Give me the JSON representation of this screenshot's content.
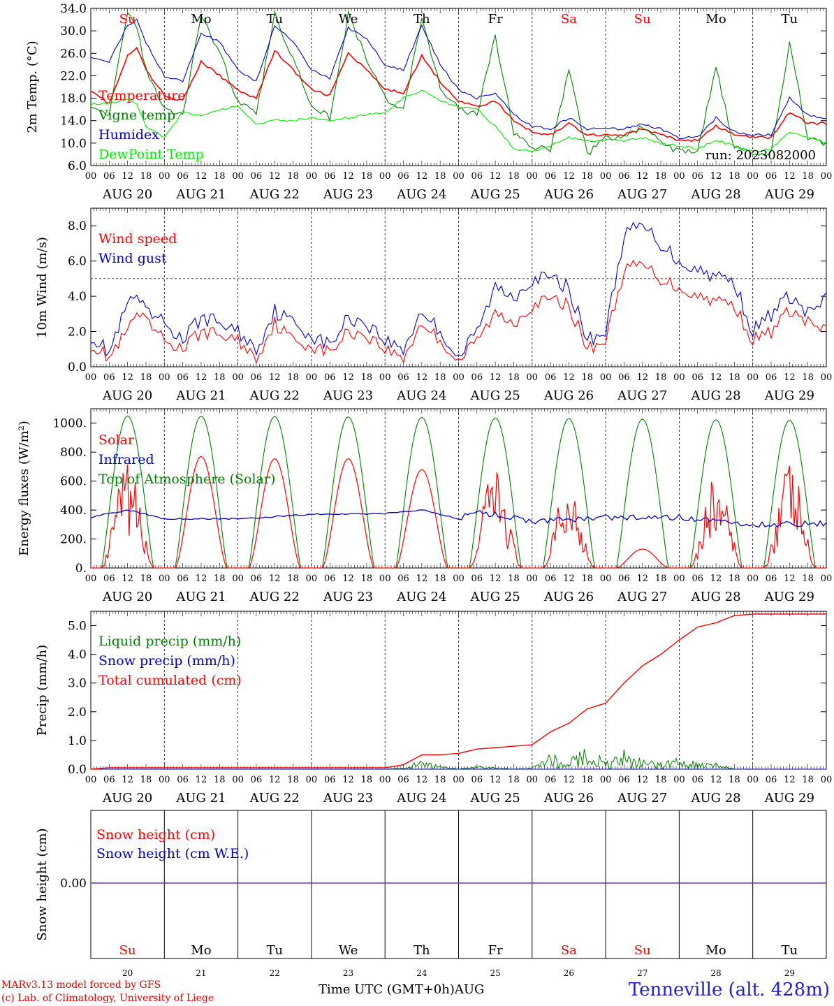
{
  "footer": {
    "credit1": "MARv3.13 model forced by GFS",
    "credit2": "(c) Lab. of Climatology, University of Liege",
    "time_label": "Time UTC (GMT+0h)",
    "month_label": "AUG",
    "station": "Tenneville (alt. 428m)"
  },
  "common": {
    "days": [
      {
        "dow": "Su",
        "date": "AUG 20",
        "num": "20",
        "weekend": true
      },
      {
        "dow": "Mo",
        "date": "AUG 21",
        "num": "21",
        "weekend": false
      },
      {
        "dow": "Tu",
        "date": "AUG 22",
        "num": "22",
        "weekend": false
      },
      {
        "dow": "We",
        "date": "AUG 23",
        "num": "23",
        "weekend": false
      },
      {
        "dow": "Th",
        "date": "AUG 24",
        "num": "24",
        "weekend": false
      },
      {
        "dow": "Fr",
        "date": "AUG 25",
        "num": "25",
        "weekend": false
      },
      {
        "dow": "Sa",
        "date": "AUG 26",
        "num": "26",
        "weekend": true
      },
      {
        "dow": "Su",
        "date": "AUG 27",
        "num": "27",
        "weekend": true
      },
      {
        "dow": "Mo",
        "date": "AUG 28",
        "num": "28",
        "weekend": false
      },
      {
        "dow": "Tu",
        "date": "AUG 29",
        "num": "29",
        "weekend": false
      }
    ],
    "hour_ticks": [
      "00",
      "06",
      "12",
      "18"
    ],
    "last_tick": "00",
    "weekend_color": "#ff0000",
    "weekday_color": "#000000"
  },
  "chart_data": [
    {
      "type": "line",
      "ylabel": "2m Temp. (°C)",
      "ylim": [
        6.0,
        34.0
      ],
      "yticks": [
        "6.0",
        "10.0",
        "14.0",
        "18.0",
        "22.0",
        "26.0",
        "30.0",
        "34.0"
      ],
      "annotation": "run: 2023082000",
      "x_hours": [
        0,
        6,
        12,
        15,
        18,
        24,
        30,
        36,
        42,
        48,
        54,
        60,
        66,
        72,
        78,
        84,
        90,
        96,
        102,
        108,
        114,
        120,
        126,
        132,
        138,
        144,
        150,
        156,
        162,
        168,
        174,
        180,
        186,
        192,
        198,
        204,
        210,
        216,
        222,
        228,
        234,
        240
      ],
      "series": [
        {
          "name": "Temperature",
          "color": "#ff0000",
          "values": [
            19.5,
            17.0,
            25.5,
            27.0,
            23.0,
            18.5,
            17.5,
            24.5,
            22.0,
            19.5,
            18.0,
            26.5,
            23.0,
            19.5,
            18.5,
            26.0,
            23.0,
            19.5,
            19.0,
            25.5,
            21.0,
            17.5,
            16.5,
            17.5,
            14.0,
            12.0,
            11.5,
            13.5,
            11.5,
            11.5,
            11.5,
            12.5,
            11.5,
            10.5,
            10.5,
            13.0,
            11.5,
            11.0,
            11.0,
            15.5,
            13.5,
            13.5
          ]
        },
        {
          "name": "Vigne temp",
          "color": "#008000",
          "values": [
            17.0,
            15.0,
            33.0,
            31.0,
            23.0,
            16.0,
            15.0,
            33.0,
            26.0,
            17.5,
            15.0,
            33.0,
            25.0,
            17.0,
            14.5,
            33.0,
            25.0,
            18.0,
            16.0,
            32.0,
            20.0,
            16.0,
            15.0,
            29.0,
            12.0,
            9.0,
            9.0,
            23.0,
            8.0,
            11.0,
            11.0,
            13.0,
            10.0,
            8.5,
            8.5,
            23.5,
            9.0,
            8.0,
            8.0,
            28.0,
            11.0,
            10.0
          ]
        },
        {
          "name": "Humidex",
          "color": "#0000c8",
          "values": [
            25.5,
            24.5,
            31.0,
            32.0,
            28.0,
            22.0,
            21.0,
            29.5,
            28.0,
            23.0,
            21.0,
            31.0,
            28.0,
            23.0,
            21.5,
            30.5,
            28.5,
            24.0,
            23.0,
            31.0,
            24.0,
            19.5,
            18.0,
            19.0,
            15.0,
            13.0,
            12.5,
            14.5,
            12.5,
            12.5,
            12.5,
            13.5,
            12.5,
            11.0,
            11.0,
            14.5,
            12.0,
            11.5,
            11.5,
            18.0,
            15.0,
            14.5
          ]
        },
        {
          "name": "DewPoint Temp",
          "color": "#00ee00",
          "values": [
            17.0,
            17.0,
            18.0,
            17.0,
            13.0,
            11.0,
            15.5,
            15.0,
            16.0,
            16.5,
            13.5,
            14.0,
            14.0,
            14.5,
            14.0,
            14.5,
            15.0,
            15.5,
            18.0,
            19.5,
            17.5,
            16.5,
            16.0,
            13.0,
            9.0,
            8.5,
            9.5,
            11.0,
            10.5,
            10.5,
            10.5,
            11.0,
            10.0,
            9.5,
            9.0,
            10.5,
            9.5,
            8.5,
            9.0,
            12.0,
            11.0,
            10.0
          ]
        }
      ]
    },
    {
      "type": "line",
      "ylabel": "10m Wind (m/s)",
      "ylim": [
        0.0,
        9.0
      ],
      "yticks": [
        "0.0",
        "2.0",
        "4.0",
        "6.0",
        "8.0"
      ],
      "reference_line": 5.0,
      "x_hours": [
        0,
        6,
        12,
        15,
        18,
        24,
        30,
        36,
        42,
        48,
        54,
        60,
        66,
        72,
        78,
        84,
        90,
        96,
        102,
        108,
        114,
        120,
        126,
        132,
        138,
        144,
        150,
        156,
        162,
        168,
        174,
        180,
        186,
        192,
        198,
        204,
        210,
        216,
        222,
        228,
        234,
        240
      ],
      "series": [
        {
          "name": "Wind speed",
          "color": "#ff0000",
          "values": [
            1.3,
            0.5,
            2.0,
            3.0,
            2.5,
            1.5,
            1.0,
            2.0,
            1.8,
            1.5,
            0.5,
            2.5,
            1.5,
            1.2,
            0.8,
            2.0,
            1.8,
            1.0,
            0.5,
            2.5,
            1.5,
            0.3,
            1.5,
            3.0,
            2.5,
            3.5,
            3.8,
            3.5,
            1.0,
            1.5,
            5.5,
            5.8,
            5.0,
            4.5,
            4.0,
            3.8,
            3.5,
            1.5,
            2.0,
            3.2,
            2.5,
            2.0
          ]
        },
        {
          "name": "Wind gust",
          "color": "#0000c8",
          "values": [
            1.8,
            0.8,
            3.5,
            4.0,
            3.0,
            2.5,
            1.5,
            2.8,
            2.5,
            2.0,
            1.0,
            3.2,
            2.5,
            1.8,
            1.2,
            2.8,
            2.5,
            1.5,
            1.0,
            3.2,
            2.0,
            0.5,
            2.0,
            4.5,
            4.0,
            5.0,
            5.0,
            4.5,
            1.5,
            2.0,
            7.5,
            8.0,
            7.0,
            6.0,
            5.5,
            5.2,
            4.8,
            2.0,
            3.0,
            4.0,
            3.0,
            3.8
          ]
        }
      ]
    },
    {
      "type": "line",
      "ylabel": "Energy fluxes (W/m²)",
      "ylim": [
        0,
        1100
      ],
      "yticks": [
        "0.",
        "200.",
        "400.",
        "600.",
        "800.",
        "1000."
      ],
      "days_toa_peak": [
        1050,
        1048,
        1046,
        1043,
        1040,
        1036,
        1032,
        1028,
        1024,
        1020
      ],
      "days_solar_peak": [
        720,
        770,
        755,
        755,
        680,
        700,
        600,
        130,
        650,
        740
      ],
      "days_solar_cloudy": [
        true,
        false,
        false,
        false,
        false,
        true,
        true,
        false,
        true,
        true
      ],
      "series": [
        {
          "name": "Solar",
          "color": "#ff0000"
        },
        {
          "name": "Infrared",
          "color": "#0000c8",
          "x_hours": [
            0,
            12,
            24,
            48,
            72,
            96,
            108,
            120,
            126,
            144,
            168,
            192,
            216,
            240
          ],
          "values": [
            350,
            400,
            340,
            340,
            370,
            375,
            400,
            340,
            390,
            320,
            350,
            350,
            300,
            310
          ]
        },
        {
          "name": "Top of Atmosphere (Solar)",
          "color": "#008000"
        }
      ]
    },
    {
      "type": "line",
      "ylabel": "Precip (mm/h)",
      "ylim": [
        0.0,
        5.5
      ],
      "yticks": [
        "0.0",
        "1.0",
        "2.0",
        "3.0",
        "4.0",
        "5.0"
      ],
      "series": [
        {
          "name": "Liquid precip (mm/h)",
          "color": "#008000",
          "x_hours": [
            0,
            96,
            102,
            108,
            114,
            120,
            126,
            132,
            138,
            144,
            150,
            156,
            160,
            162,
            165,
            168,
            174,
            180,
            186,
            192,
            198,
            204,
            210,
            216,
            240
          ],
          "values": [
            0,
            0,
            0.05,
            0.3,
            0.1,
            0,
            0.1,
            0.05,
            0,
            0.05,
            0.55,
            0.1,
            1.3,
            0.2,
            0.5,
            0.3,
            0.6,
            0.3,
            0.2,
            0.4,
            0.2,
            0.2,
            0,
            0,
            0
          ]
        },
        {
          "name": "Snow precip (mm/h)",
          "color": "#0000c8",
          "x_hours": [
            0,
            240
          ],
          "values": [
            0,
            0
          ]
        },
        {
          "name": "Total cumulated (cm)",
          "color": "#ff0000",
          "x_hours": [
            0,
            6,
            96,
            102,
            108,
            114,
            120,
            126,
            132,
            138,
            144,
            150,
            156,
            162,
            168,
            174,
            180,
            186,
            192,
            198,
            204,
            210,
            216,
            240
          ],
          "values": [
            0,
            0.05,
            0.05,
            0.15,
            0.5,
            0.5,
            0.55,
            0.7,
            0.75,
            0.8,
            0.85,
            1.3,
            1.6,
            2.1,
            2.3,
            3.0,
            3.6,
            4.0,
            4.5,
            4.95,
            5.1,
            5.35,
            5.4,
            5.4
          ]
        }
      ]
    },
    {
      "type": "line",
      "ylabel": "Snow height (cm)",
      "ytick": "0.00",
      "series": [
        {
          "name": "Snow height (cm)",
          "color": "#ff0000",
          "x_hours": [
            0,
            240
          ],
          "values": [
            0,
            0
          ]
        },
        {
          "name": "Snow height (cm W.E.)",
          "color": "#0000c8",
          "x_hours": [
            0,
            240
          ],
          "values": [
            0,
            0
          ]
        }
      ]
    }
  ]
}
